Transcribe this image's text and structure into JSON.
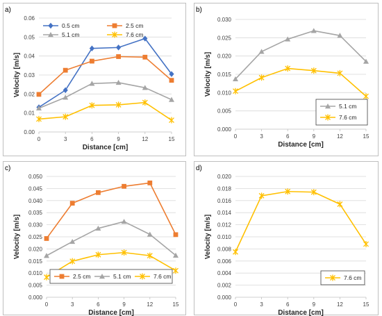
{
  "colors": {
    "0.5 cm": "#4472c4",
    "2.5 cm": "#ed7d31",
    "5.1 cm": "#a5a5a5",
    "7.6 cm": "#ffc000"
  },
  "markers": {
    "0.5 cm": "diamond",
    "2.5 cm": "square",
    "5.1 cm": "triangle",
    "7.6 cm": "x-star"
  },
  "chart_data": [
    {
      "panel": "a)",
      "type": "line",
      "xlabel": "Distance [cm]",
      "ylabel": "Velocity [m/s]",
      "x": [
        0,
        3,
        6,
        9,
        12,
        15
      ],
      "xlim": [
        0,
        15
      ],
      "ylim": [
        0,
        0.06
      ],
      "yticks": [
        "0.00",
        "0.01",
        "0.02",
        "0.03",
        "0.04",
        "0.05",
        "0.06"
      ],
      "grid": true,
      "legend_position": "top",
      "series": [
        {
          "name": "0.5 cm",
          "values": [
            0.013,
            0.022,
            0.044,
            0.0445,
            0.0492,
            0.0305
          ]
        },
        {
          "name": "2.5 cm",
          "values": [
            0.0198,
            0.0325,
            0.0373,
            0.0397,
            0.0394,
            0.0272
          ]
        },
        {
          "name": "5.1 cm",
          "values": [
            0.0125,
            0.0182,
            0.0255,
            0.026,
            0.0233,
            0.017
          ]
        },
        {
          "name": "7.6 cm",
          "values": [
            0.0068,
            0.008,
            0.014,
            0.0143,
            0.0155,
            0.0062
          ]
        }
      ]
    },
    {
      "panel": "b)",
      "type": "line",
      "xlabel": "Distance [cm]",
      "ylabel": "Velocity [m/s]",
      "x": [
        0,
        3,
        6,
        9,
        12,
        15
      ],
      "xlim": [
        0,
        15
      ],
      "ylim": [
        0,
        0.03
      ],
      "yticks": [
        "0.000",
        "0.005",
        "0.010",
        "0.015",
        "0.020",
        "0.025",
        "0.030"
      ],
      "grid": true,
      "legend_position": "bottom-right",
      "series": [
        {
          "name": "5.1 cm",
          "values": [
            0.0137,
            0.0212,
            0.0246,
            0.0269,
            0.0256,
            0.0185
          ]
        },
        {
          "name": "7.6 cm",
          "values": [
            0.0104,
            0.0141,
            0.0166,
            0.016,
            0.0153,
            0.009
          ]
        }
      ]
    },
    {
      "panel": "c)",
      "type": "line",
      "xlabel": "Distance [cm]",
      "ylabel": "Velocity [m/s]",
      "x": [
        0,
        3,
        6,
        9,
        12,
        15
      ],
      "xlim": [
        0,
        15
      ],
      "ylim": [
        0,
        0.05
      ],
      "yticks": [
        "0.000",
        "0.005",
        "0.010",
        "0.015",
        "0.020",
        "0.025",
        "0.030",
        "0.035",
        "0.040",
        "0.045",
        "0.050"
      ],
      "grid": true,
      "legend_position": "bottom",
      "series": [
        {
          "name": "2.5 cm",
          "values": [
            0.0243,
            0.0389,
            0.0433,
            0.0459,
            0.0473,
            0.0259
          ]
        },
        {
          "name": "5.1 cm",
          "values": [
            0.0172,
            0.023,
            0.0285,
            0.0313,
            0.026,
            0.0173
          ]
        },
        {
          "name": "7.6 cm",
          "values": [
            0.0083,
            0.0149,
            0.0176,
            0.0185,
            0.0172,
            0.011
          ]
        }
      ]
    },
    {
      "panel": "d)",
      "type": "line",
      "xlabel": "Distance [cm]",
      "ylabel": "Velocity [m/s]",
      "x": [
        0,
        3,
        6,
        9,
        12,
        15
      ],
      "xlim": [
        0,
        15
      ],
      "ylim": [
        0,
        0.02
      ],
      "yticks": [
        "0.000",
        "0.002",
        "0.004",
        "0.006",
        "0.008",
        "0.010",
        "0.012",
        "0.014",
        "0.016",
        "0.018",
        "0.020"
      ],
      "grid": true,
      "legend_position": "bottom-right",
      "series": [
        {
          "name": "7.6 cm",
          "values": [
            0.0075,
            0.0168,
            0.0175,
            0.0174,
            0.0154,
            0.0088
          ]
        }
      ]
    }
  ]
}
